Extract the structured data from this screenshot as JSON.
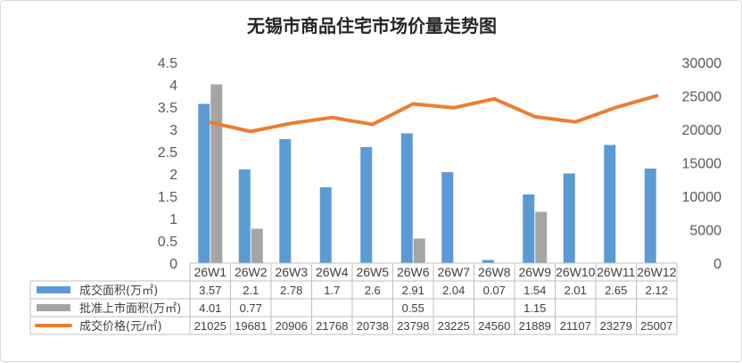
{
  "chart_data": {
    "type": "bar",
    "title": "无锡市商品住宅市场价量走势图",
    "categories": [
      "26W1",
      "26W2",
      "26W3",
      "26W4",
      "26W5",
      "26W6",
      "26W7",
      "26W8",
      "26W9",
      "26W10",
      "26W11",
      "26W12"
    ],
    "y_left": {
      "range": [
        0,
        4.5
      ],
      "ticks": [
        "0",
        "0.5",
        "1",
        "1.5",
        "2",
        "2.5",
        "3",
        "3.5",
        "4",
        "4.5"
      ]
    },
    "y_right": {
      "range": [
        0,
        30000
      ],
      "ticks": [
        "0",
        "5000",
        "10000",
        "15000",
        "20000",
        "25000",
        "30000"
      ]
    },
    "series": [
      {
        "name": "成交面积(万㎡)",
        "type": "bar",
        "axis": "left",
        "color": "#5b9bd5",
        "values": [
          3.57,
          2.1,
          2.78,
          1.7,
          2.6,
          2.91,
          2.04,
          0.07,
          1.54,
          2.01,
          2.65,
          2.12
        ],
        "labels": [
          "3.57",
          "2.1",
          "2.78",
          "1.7",
          "2.6",
          "2.91",
          "2.04",
          "0.07",
          "1.54",
          "2.01",
          "2.65",
          "2.12"
        ]
      },
      {
        "name": "批准上市面积(万㎡)",
        "type": "bar",
        "axis": "left",
        "color": "#a5a5a5",
        "values": [
          4.01,
          0.77,
          null,
          null,
          null,
          0.55,
          null,
          null,
          1.15,
          null,
          null,
          null
        ],
        "labels": [
          "4.01",
          "0.77",
          "",
          "",
          "",
          "0.55",
          "",
          "",
          "1.15",
          "",
          "",
          ""
        ]
      },
      {
        "name": "成交价格(元/㎡)",
        "type": "line",
        "axis": "right",
        "color": "#ed7d31",
        "values": [
          21025,
          19681,
          20906,
          21768,
          20738,
          23798,
          23225,
          24560,
          21889,
          21107,
          23279,
          25007
        ],
        "labels": [
          "21025",
          "19681",
          "20906",
          "21768",
          "20738",
          "23798",
          "23225",
          "24560",
          "21889",
          "21107",
          "23279",
          "25007"
        ]
      }
    ],
    "legend": "data-table",
    "grid": false
  }
}
